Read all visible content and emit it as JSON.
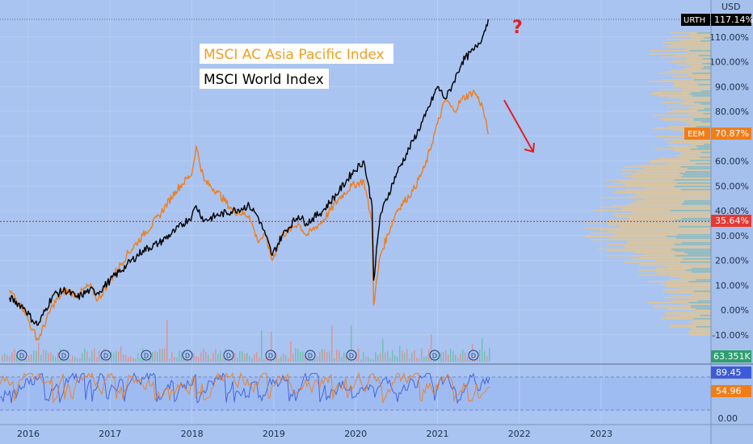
{
  "chart_data": [
    {
      "type": "line",
      "title": "",
      "currency_label": "USD",
      "y_unit": "%",
      "ylim": [
        -16,
        124
      ],
      "y_ticks": [
        "110.00%",
        "100.00%",
        "90.00%",
        "80.00%",
        "70.00%",
        "60.00%",
        "50.00%",
        "40.00%",
        "30.00%",
        "20.00%",
        "10.00%",
        "0.00%",
        "-10.00%"
      ],
      "x_ticks": [
        "2016",
        "2017",
        "2018",
        "2019",
        "2020",
        "2021",
        "2022",
        "2023"
      ],
      "legend": [
        "MSCI AC Asia Pacific Index",
        "MSCI World Index"
      ],
      "annotations": {
        "question_mark": "?"
      },
      "reference_line": {
        "value": 35.64,
        "label": "35.64%"
      },
      "series": [
        {
          "name": "URTH",
          "color": "#000000",
          "last_label": "117.14%",
          "x": [
            2015.77,
            2015.95,
            2016.05,
            2016.12,
            2016.3,
            2016.45,
            2016.6,
            2016.75,
            2016.85,
            2017.0,
            2017.2,
            2017.4,
            2017.6,
            2017.8,
            2018.0,
            2018.05,
            2018.15,
            2018.3,
            2018.5,
            2018.7,
            2018.8,
            2018.9,
            2018.98,
            2019.1,
            2019.3,
            2019.4,
            2019.6,
            2019.8,
            2019.95,
            2020.1,
            2020.2,
            2020.22,
            2020.3,
            2020.5,
            2020.7,
            2020.85,
            2021.0,
            2021.1,
            2021.2,
            2021.3,
            2021.45,
            2021.55,
            2021.62
          ],
          "y": [
            5,
            1,
            -4,
            -6,
            6,
            8,
            5,
            8,
            7,
            12,
            18,
            24,
            27,
            32,
            38,
            42,
            36,
            38,
            40,
            42,
            38,
            30,
            22,
            30,
            38,
            35,
            40,
            48,
            55,
            60,
            42,
            12,
            38,
            55,
            68,
            78,
            90,
            85,
            92,
            100,
            105,
            110,
            117.14
          ]
        },
        {
          "name": "EEM",
          "color": "#f07d1a",
          "last_label": "70.87%",
          "x": [
            2015.77,
            2015.95,
            2016.05,
            2016.12,
            2016.3,
            2016.45,
            2016.6,
            2016.75,
            2016.85,
            2017.0,
            2017.2,
            2017.4,
            2017.6,
            2017.8,
            2018.0,
            2018.05,
            2018.15,
            2018.3,
            2018.5,
            2018.7,
            2018.8,
            2018.9,
            2018.98,
            2019.1,
            2019.3,
            2019.4,
            2019.6,
            2019.8,
            2019.95,
            2020.1,
            2020.2,
            2020.22,
            2020.3,
            2020.5,
            2020.7,
            2020.85,
            2021.0,
            2021.1,
            2021.2,
            2021.3,
            2021.45,
            2021.55,
            2021.62
          ],
          "y": [
            8,
            0,
            -8,
            -12,
            2,
            8,
            6,
            10,
            4,
            12,
            22,
            30,
            38,
            48,
            55,
            66,
            52,
            48,
            40,
            38,
            28,
            30,
            20,
            30,
            35,
            30,
            36,
            45,
            50,
            52,
            35,
            2,
            22,
            40,
            48,
            58,
            75,
            85,
            80,
            85,
            88,
            82,
            70.87
          ]
        }
      ],
      "badges": [
        "D",
        "D",
        "D",
        "D",
        "D",
        "D",
        "D",
        "D",
        "D",
        "D",
        "D",
        "D"
      ],
      "volume_label": "63.351K"
    },
    {
      "type": "line",
      "title": "",
      "ylim": [
        -5,
        100
      ],
      "y_ticks": [
        "0.00"
      ],
      "series": [
        {
          "name": "",
          "color": "#3d5bd9",
          "last_label": "89.45"
        },
        {
          "name": "",
          "color": "#f07d1a",
          "last_label": "54.96"
        }
      ]
    }
  ]
}
